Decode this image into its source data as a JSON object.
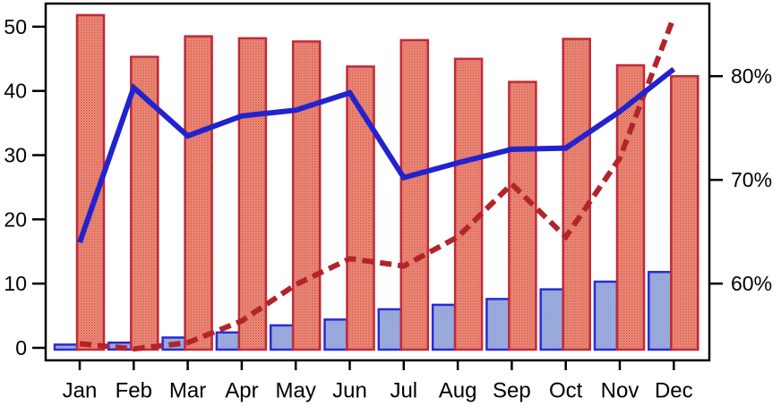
{
  "chart_data": {
    "type": "combo",
    "title": "",
    "categories": [
      "Jan",
      "Feb",
      "Mar",
      "Apr",
      "May",
      "Jun",
      "Jul",
      "Aug",
      "Sep",
      "Oct",
      "Nov",
      "Dec"
    ],
    "left_axis": {
      "ticks": [
        0,
        10,
        20,
        30,
        40,
        50
      ],
      "range": [
        -1.95,
        53.6
      ]
    },
    "right_axis": {
      "ticks": [
        60,
        70,
        80
      ],
      "tick_labels": [
        "60%",
        "70%",
        "80%"
      ],
      "range": [
        52.6,
        87.0
      ]
    },
    "grid": false,
    "legend": "none",
    "series": [
      {
        "name": "salmon-bars",
        "type": "bar",
        "axis": "left",
        "fill_base": "#EE9B8A",
        "fill_dot": "#D7503F",
        "border": "#C12A38",
        "values": [
          51.8,
          45.3,
          48.5,
          48.2,
          47.7,
          43.8,
          47.9,
          45.0,
          41.4,
          48.1,
          44.0,
          42.3
        ]
      },
      {
        "name": "blue-bars",
        "type": "bar",
        "axis": "left",
        "fill_base": "#A4B3E0",
        "fill_dot": "#8499D2",
        "border": "#2A2AD6",
        "values": [
          0.5,
          0.8,
          1.6,
          2.4,
          3.5,
          4.4,
          6.0,
          6.7,
          7.6,
          9.1,
          10.3,
          11.8
        ]
      },
      {
        "name": "blue-line",
        "type": "line",
        "axis": "left",
        "style": "solid",
        "color": "#2222CE",
        "values": [
          16.4,
          40.5,
          33.0,
          36.1,
          37.0,
          39.7,
          26.5,
          28.8,
          30.9,
          31.1,
          36.8,
          43.4
        ]
      },
      {
        "name": "dark-red-dashed-line",
        "type": "line",
        "axis": "right",
        "style": "dashed",
        "color": "#B2242C",
        "values": [
          54.2,
          53.7,
          54.3,
          56.4,
          59.9,
          62.4,
          61.7,
          64.5,
          69.6,
          64.5,
          72.1,
          85.7
        ]
      }
    ]
  }
}
